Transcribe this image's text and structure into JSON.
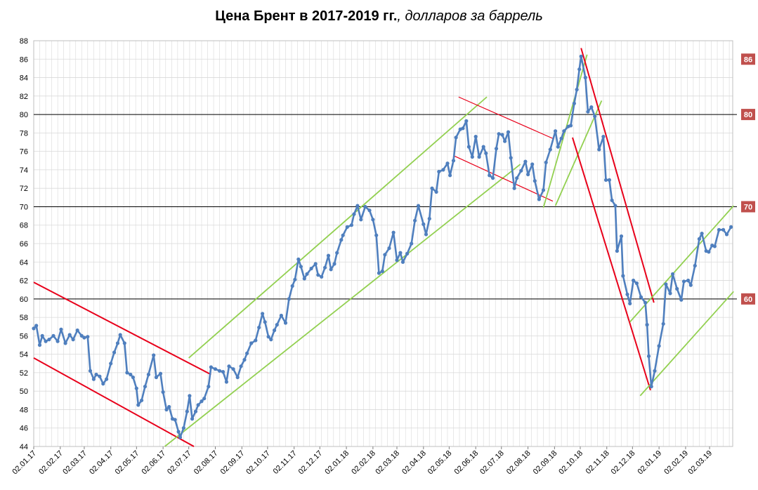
{
  "title": {
    "bold": "Цена Брент в 2017-2019 гг.",
    "italic": ", долларов за баррель"
  },
  "colors": {
    "series": "#4f7fbe",
    "red_channel": "#e8001a",
    "green_channel": "#92d050",
    "badge": "#c0504d",
    "grid": "#d9d9d9"
  },
  "chart_data": {
    "type": "line",
    "title": "Цена Брент в 2017-2019 гг., долларов за баррель",
    "ylim": [
      44,
      88
    ],
    "y_ticks": [
      44,
      46,
      48,
      50,
      52,
      54,
      56,
      58,
      60,
      62,
      64,
      66,
      68,
      70,
      72,
      74,
      76,
      78,
      80,
      82,
      84,
      86,
      88
    ],
    "x_range": [
      "2017-01-02",
      "2019-03-29"
    ],
    "x_tick_labels": [
      "02.01.17",
      "02.02.17",
      "02.03.17",
      "02.04.17",
      "02.05.17",
      "02.06.17",
      "02.07.17",
      "02.08.17",
      "02.09.17",
      "02.10.17",
      "02.11.17",
      "02.12.17",
      "02.01.18",
      "02.02.18",
      "02.03.18",
      "02.04.18",
      "02.05.18",
      "02.06.18",
      "02.07.18",
      "02.08.18",
      "02.09.18",
      "02.10.18",
      "02.11.18",
      "02.12.18",
      "02.01.19",
      "02.02.19",
      "02.03.19"
    ],
    "x_tick_dates": [
      "2017-01-02",
      "2017-02-02",
      "2017-03-02",
      "2017-04-02",
      "2017-05-02",
      "2017-06-02",
      "2017-07-02",
      "2017-08-02",
      "2017-09-02",
      "2017-10-02",
      "2017-11-02",
      "2017-12-02",
      "2018-01-02",
      "2018-02-02",
      "2018-03-02",
      "2018-04-02",
      "2018-05-02",
      "2018-06-02",
      "2018-07-02",
      "2018-08-02",
      "2018-09-02",
      "2018-10-02",
      "2018-11-02",
      "2018-12-02",
      "2019-01-02",
      "2019-02-02",
      "2019-03-02"
    ],
    "grid": true,
    "reference_lines": [
      80,
      70,
      60
    ],
    "badges": [
      {
        "label": "86",
        "value": 86
      },
      {
        "label": "80",
        "value": 80
      },
      {
        "label": "70",
        "value": 70
      },
      {
        "label": "60",
        "value": 60
      }
    ],
    "series": [
      {
        "points": [
          [
            "2017-01-02",
            56.8
          ],
          [
            "2017-01-05",
            57.1
          ],
          [
            "2017-01-09",
            55.0
          ],
          [
            "2017-01-12",
            56.0
          ],
          [
            "2017-01-16",
            55.4
          ],
          [
            "2017-01-20",
            55.6
          ],
          [
            "2017-01-25",
            56.0
          ],
          [
            "2017-01-30",
            55.4
          ],
          [
            "2017-02-03",
            56.7
          ],
          [
            "2017-02-08",
            55.2
          ],
          [
            "2017-02-13",
            56.1
          ],
          [
            "2017-02-17",
            55.6
          ],
          [
            "2017-02-22",
            56.6
          ],
          [
            "2017-02-27",
            56.0
          ],
          [
            "2017-03-02",
            55.8
          ],
          [
            "2017-03-06",
            55.9
          ],
          [
            "2017-03-09",
            52.2
          ],
          [
            "2017-03-13",
            51.3
          ],
          [
            "2017-03-16",
            51.8
          ],
          [
            "2017-03-20",
            51.6
          ],
          [
            "2017-03-24",
            50.8
          ],
          [
            "2017-03-28",
            51.3
          ],
          [
            "2017-04-02",
            53.0
          ],
          [
            "2017-04-06",
            54.2
          ],
          [
            "2017-04-10",
            55.2
          ],
          [
            "2017-04-13",
            56.1
          ],
          [
            "2017-04-18",
            55.2
          ],
          [
            "2017-04-21",
            52.0
          ],
          [
            "2017-04-25",
            51.8
          ],
          [
            "2017-04-28",
            51.5
          ],
          [
            "2017-05-02",
            50.3
          ],
          [
            "2017-05-04",
            48.5
          ],
          [
            "2017-05-08",
            49.0
          ],
          [
            "2017-05-12",
            50.5
          ],
          [
            "2017-05-16",
            51.8
          ],
          [
            "2017-05-22",
            53.9
          ],
          [
            "2017-05-25",
            51.5
          ],
          [
            "2017-05-30",
            51.9
          ],
          [
            "2017-06-02",
            49.9
          ],
          [
            "2017-06-06",
            48.0
          ],
          [
            "2017-06-09",
            48.3
          ],
          [
            "2017-06-13",
            47.0
          ],
          [
            "2017-06-16",
            46.9
          ],
          [
            "2017-06-20",
            45.6
          ],
          [
            "2017-06-22",
            45.0
          ],
          [
            "2017-06-26",
            46.0
          ],
          [
            "2017-06-30",
            47.8
          ],
          [
            "2017-07-03",
            49.5
          ],
          [
            "2017-07-06",
            47.0
          ],
          [
            "2017-07-10",
            47.8
          ],
          [
            "2017-07-13",
            48.5
          ],
          [
            "2017-07-17",
            48.9
          ],
          [
            "2017-07-20",
            49.2
          ],
          [
            "2017-07-25",
            50.5
          ],
          [
            "2017-07-28",
            52.6
          ],
          [
            "2017-08-02",
            52.4
          ],
          [
            "2017-08-07",
            52.2
          ],
          [
            "2017-08-11",
            52.1
          ],
          [
            "2017-08-15",
            51.0
          ],
          [
            "2017-08-18",
            52.7
          ],
          [
            "2017-08-23",
            52.4
          ],
          [
            "2017-08-28",
            51.5
          ],
          [
            "2017-09-01",
            52.7
          ],
          [
            "2017-09-05",
            53.4
          ],
          [
            "2017-09-08",
            54.1
          ],
          [
            "2017-09-13",
            55.2
          ],
          [
            "2017-09-18",
            55.5
          ],
          [
            "2017-09-22",
            56.9
          ],
          [
            "2017-09-26",
            58.4
          ],
          [
            "2017-09-29",
            57.5
          ],
          [
            "2017-10-03",
            55.9
          ],
          [
            "2017-10-06",
            55.6
          ],
          [
            "2017-10-10",
            56.6
          ],
          [
            "2017-10-13",
            57.2
          ],
          [
            "2017-10-18",
            58.2
          ],
          [
            "2017-10-23",
            57.4
          ],
          [
            "2017-10-27",
            60.0
          ],
          [
            "2017-10-31",
            61.4
          ],
          [
            "2017-11-03",
            62.1
          ],
          [
            "2017-11-07",
            64.3
          ],
          [
            "2017-11-10",
            63.5
          ],
          [
            "2017-11-14",
            62.2
          ],
          [
            "2017-11-17",
            62.7
          ],
          [
            "2017-11-22",
            63.3
          ],
          [
            "2017-11-27",
            63.8
          ],
          [
            "2017-11-30",
            62.6
          ],
          [
            "2017-12-04",
            62.4
          ],
          [
            "2017-12-08",
            63.4
          ],
          [
            "2017-12-12",
            64.7
          ],
          [
            "2017-12-15",
            63.2
          ],
          [
            "2017-12-19",
            63.8
          ],
          [
            "2017-12-22",
            65.0
          ],
          [
            "2017-12-27",
            66.4
          ],
          [
            "2017-12-29",
            66.9
          ],
          [
            "2018-01-03",
            67.8
          ],
          [
            "2018-01-08",
            68.0
          ],
          [
            "2018-01-11",
            69.2
          ],
          [
            "2018-01-15",
            70.1
          ],
          [
            "2018-01-19",
            68.6
          ],
          [
            "2018-01-24",
            70.0
          ],
          [
            "2018-01-29",
            69.6
          ],
          [
            "2018-02-02",
            68.6
          ],
          [
            "2018-02-06",
            66.9
          ],
          [
            "2018-02-09",
            62.8
          ],
          [
            "2018-02-13",
            63.0
          ],
          [
            "2018-02-16",
            64.8
          ],
          [
            "2018-02-21",
            65.5
          ],
          [
            "2018-02-26",
            67.2
          ],
          [
            "2018-03-02",
            64.2
          ],
          [
            "2018-03-06",
            65.0
          ],
          [
            "2018-03-09",
            64.0
          ],
          [
            "2018-03-14",
            64.9
          ],
          [
            "2018-03-19",
            66.0
          ],
          [
            "2018-03-23",
            68.5
          ],
          [
            "2018-03-27",
            70.1
          ],
          [
            "2018-04-02",
            68.1
          ],
          [
            "2018-04-05",
            67.0
          ],
          [
            "2018-04-09",
            68.7
          ],
          [
            "2018-04-12",
            72.0
          ],
          [
            "2018-04-17",
            71.6
          ],
          [
            "2018-04-20",
            73.8
          ],
          [
            "2018-04-25",
            74.0
          ],
          [
            "2018-04-30",
            74.7
          ],
          [
            "2018-05-03",
            73.4
          ],
          [
            "2018-05-07",
            75.0
          ],
          [
            "2018-05-10",
            77.5
          ],
          [
            "2018-05-15",
            78.4
          ],
          [
            "2018-05-18",
            78.5
          ],
          [
            "2018-05-22",
            79.3
          ],
          [
            "2018-05-25",
            76.5
          ],
          [
            "2018-05-29",
            75.4
          ],
          [
            "2018-06-02",
            77.6
          ],
          [
            "2018-06-06",
            75.4
          ],
          [
            "2018-06-11",
            76.5
          ],
          [
            "2018-06-14",
            75.8
          ],
          [
            "2018-06-18",
            73.4
          ],
          [
            "2018-06-22",
            73.1
          ],
          [
            "2018-06-26",
            76.3
          ],
          [
            "2018-06-29",
            77.9
          ],
          [
            "2018-07-03",
            77.8
          ],
          [
            "2018-07-06",
            77.1
          ],
          [
            "2018-07-10",
            78.1
          ],
          [
            "2018-07-13",
            75.3
          ],
          [
            "2018-07-17",
            72.0
          ],
          [
            "2018-07-20",
            73.1
          ],
          [
            "2018-07-25",
            73.9
          ],
          [
            "2018-07-30",
            74.9
          ],
          [
            "2018-08-02",
            73.5
          ],
          [
            "2018-08-07",
            74.6
          ],
          [
            "2018-08-10",
            72.8
          ],
          [
            "2018-08-15",
            70.8
          ],
          [
            "2018-08-20",
            71.8
          ],
          [
            "2018-08-23",
            74.8
          ],
          [
            "2018-08-28",
            76.2
          ],
          [
            "2018-09-03",
            78.2
          ],
          [
            "2018-09-06",
            76.5
          ],
          [
            "2018-09-10",
            77.4
          ],
          [
            "2018-09-13",
            78.2
          ],
          [
            "2018-09-18",
            78.7
          ],
          [
            "2018-09-21",
            78.8
          ],
          [
            "2018-09-25",
            81.2
          ],
          [
            "2018-09-28",
            82.7
          ],
          [
            "2018-10-01",
            84.9
          ],
          [
            "2018-10-03",
            86.3
          ],
          [
            "2018-10-08",
            84.0
          ],
          [
            "2018-10-11",
            80.3
          ],
          [
            "2018-10-15",
            80.8
          ],
          [
            "2018-10-19",
            79.8
          ],
          [
            "2018-10-24",
            76.2
          ],
          [
            "2018-10-29",
            77.6
          ],
          [
            "2018-11-01",
            72.9
          ],
          [
            "2018-11-05",
            72.9
          ],
          [
            "2018-11-08",
            70.7
          ],
          [
            "2018-11-12",
            70.1
          ],
          [
            "2018-11-14",
            65.2
          ],
          [
            "2018-11-19",
            66.8
          ],
          [
            "2018-11-21",
            62.5
          ],
          [
            "2018-11-26",
            60.5
          ],
          [
            "2018-11-29",
            59.5
          ],
          [
            "2018-12-03",
            62.0
          ],
          [
            "2018-12-07",
            61.7
          ],
          [
            "2018-12-12",
            60.2
          ],
          [
            "2018-12-17",
            59.6
          ],
          [
            "2018-12-19",
            57.2
          ],
          [
            "2018-12-21",
            53.8
          ],
          [
            "2018-12-24",
            50.5
          ],
          [
            "2018-12-28",
            52.2
          ],
          [
            "2019-01-02",
            54.9
          ],
          [
            "2019-01-07",
            57.3
          ],
          [
            "2019-01-10",
            61.6
          ],
          [
            "2019-01-15",
            60.6
          ],
          [
            "2019-01-18",
            62.7
          ],
          [
            "2019-01-23",
            61.1
          ],
          [
            "2019-01-28",
            59.9
          ],
          [
            "2019-01-31",
            61.9
          ],
          [
            "2019-02-05",
            62.0
          ],
          [
            "2019-02-08",
            61.5
          ],
          [
            "2019-02-13",
            63.6
          ],
          [
            "2019-02-18",
            66.5
          ],
          [
            "2019-02-21",
            67.1
          ],
          [
            "2019-02-26",
            65.2
          ],
          [
            "2019-03-01",
            65.1
          ],
          [
            "2019-03-05",
            65.8
          ],
          [
            "2019-03-08",
            65.7
          ],
          [
            "2019-03-13",
            67.5
          ],
          [
            "2019-03-18",
            67.5
          ],
          [
            "2019-03-22",
            67.0
          ],
          [
            "2019-03-27",
            67.8
          ]
        ]
      }
    ],
    "trend_lines": [
      {
        "color": "red",
        "from": [
          "2017-01-02",
          61.8
        ],
        "to": [
          "2017-07-28",
          51.8
        ]
      },
      {
        "color": "red",
        "from": [
          "2017-01-02",
          53.6
        ],
        "to": [
          "2017-07-08",
          44.0
        ]
      },
      {
        "color": "green",
        "from": [
          "2017-07-02",
          53.6
        ],
        "to": [
          "2018-06-15",
          81.9
        ]
      },
      {
        "color": "green",
        "from": [
          "2017-06-04",
          44.0
        ],
        "to": [
          "2018-07-24",
          74.6
        ]
      },
      {
        "color": "red",
        "from": [
          "2018-05-13",
          81.9
        ],
        "to": [
          "2018-08-31",
          77.4
        ]
      },
      {
        "color": "red",
        "from": [
          "2018-05-08",
          75.5
        ],
        "to": [
          "2018-08-31",
          70.6
        ]
      },
      {
        "color": "green",
        "from": [
          "2018-08-20",
          69.9
        ],
        "to": [
          "2018-10-10",
          86.5
        ]
      },
      {
        "color": "green",
        "from": [
          "2018-09-03",
          70.1
        ],
        "to": [
          "2018-10-27",
          81.5
        ]
      },
      {
        "color": "red",
        "from": [
          "2018-10-03",
          87.2
        ],
        "to": [
          "2018-12-27",
          59.6
        ]
      },
      {
        "color": "red",
        "from": [
          "2018-09-23",
          77.5
        ],
        "to": [
          "2018-12-23",
          50.1
        ]
      },
      {
        "color": "green",
        "from": [
          "2018-11-29",
          57.5
        ],
        "to": [
          "2019-03-30",
          70.1
        ]
      },
      {
        "color": "green",
        "from": [
          "2018-12-11",
          49.5
        ],
        "to": [
          "2019-03-30",
          60.8
        ]
      }
    ]
  }
}
